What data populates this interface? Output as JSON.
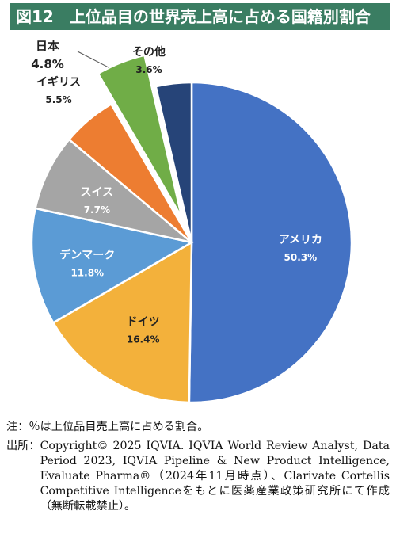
{
  "title": "図12　上位品目の世界売上高に占める国籍別割合",
  "chart_data": {
    "type": "pie",
    "title": "図12　上位品目の世界売上高に占める国籍別割合",
    "slices": [
      {
        "label": "アメリカ",
        "value": 50.3,
        "value_label": "50.3%",
        "color": "#4472c4",
        "exploded": false
      },
      {
        "label": "ドイツ",
        "value": 16.4,
        "value_label": "16.4%",
        "color": "#f3b13b",
        "exploded": false
      },
      {
        "label": "デンマーク",
        "value": 11.8,
        "value_label": "11.8%",
        "color": "#5b9bd5",
        "exploded": false
      },
      {
        "label": "スイス",
        "value": 7.7,
        "value_label": "7.7%",
        "color": "#a5a5a5",
        "exploded": false
      },
      {
        "label": "イギリス",
        "value": 5.5,
        "value_label": "5.5%",
        "color": "#ed7d31",
        "exploded": false
      },
      {
        "label": "日本",
        "value": 4.8,
        "value_label": "4.8%",
        "color": "#70ad47",
        "exploded": true
      },
      {
        "label": "その他",
        "value": 3.6,
        "value_label": "3.6%",
        "color": "#264478",
        "exploded": false
      }
    ],
    "start": "12 o'clock",
    "direction": "clockwise"
  },
  "notes": {
    "note_label": "注：",
    "note_text": "％は上位品目売上高に占める割合。",
    "source_label": "出所：",
    "source_text": "Copyright© 2025 IQVIA. IQVIA World Review Analyst, Data Period 2023, IQVIA Pipeline & New Product Intelligence, Evaluate Pharma®（2024年11月時点）、Clarivate Cortellis Competitive Intelligenceをもとに医薬産業政策研究所にて作成（無断転載禁止）。"
  }
}
